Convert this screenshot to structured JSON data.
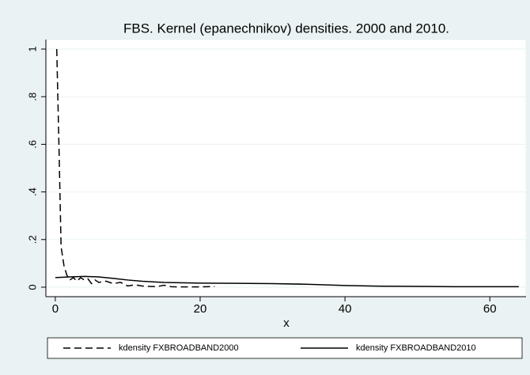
{
  "chart_data": {
    "type": "line",
    "title": "FBS. Kernel (epanechnikov) densities. 2000 and 2010.",
    "x_label": "x",
    "xlim": [
      -1.3,
      65
    ],
    "xticks": [
      0,
      20,
      40,
      60
    ],
    "ylim": [
      -0.04,
      1.04
    ],
    "yticks": [
      0,
      {
        "value": 0.2,
        "label": ".2"
      },
      {
        "value": 0.4,
        "label": ".4"
      },
      {
        "value": 0.6,
        "label": ".6"
      },
      {
        "value": 0.8,
        "label": ".8"
      },
      1
    ],
    "grid": true,
    "legend": "bottom",
    "series": [
      {
        "name": "kdensity FXBROADBAND2000",
        "color": "#000000",
        "line_style": "dashed",
        "x": [
          0.2,
          0.5,
          0.8,
          1.2,
          1.6,
          2,
          2.5,
          3,
          3.5,
          4,
          4.5,
          5,
          5.5,
          6,
          7,
          8,
          9,
          10,
          11,
          12,
          13,
          14,
          15,
          16,
          17,
          18,
          19,
          20,
          21,
          22
        ],
        "values": [
          1.0,
          0.6,
          0.17,
          0.09,
          0.05,
          0.03,
          0.04,
          0.025,
          0.04,
          0.03,
          0.035,
          0.015,
          0.03,
          0.02,
          0.025,
          0.015,
          0.02,
          0.005,
          0.01,
          0.005,
          0.003,
          0.002,
          0.008,
          0.002,
          0.001,
          0.001,
          0.001,
          0.001,
          0.002,
          0.003
        ]
      },
      {
        "name": "kdensity FXBROADBAND2010",
        "color": "#000000",
        "line_style": "solid",
        "x": [
          0,
          2,
          4,
          6,
          8,
          10,
          12,
          15,
          20,
          25,
          30,
          35,
          40,
          45,
          50,
          55,
          60,
          64
        ],
        "values": [
          0.04,
          0.043,
          0.045,
          0.043,
          0.037,
          0.03,
          0.025,
          0.02,
          0.017,
          0.016,
          0.015,
          0.012,
          0.007,
          0.004,
          0.003,
          0.002,
          0.002,
          0.002
        ]
      }
    ]
  }
}
